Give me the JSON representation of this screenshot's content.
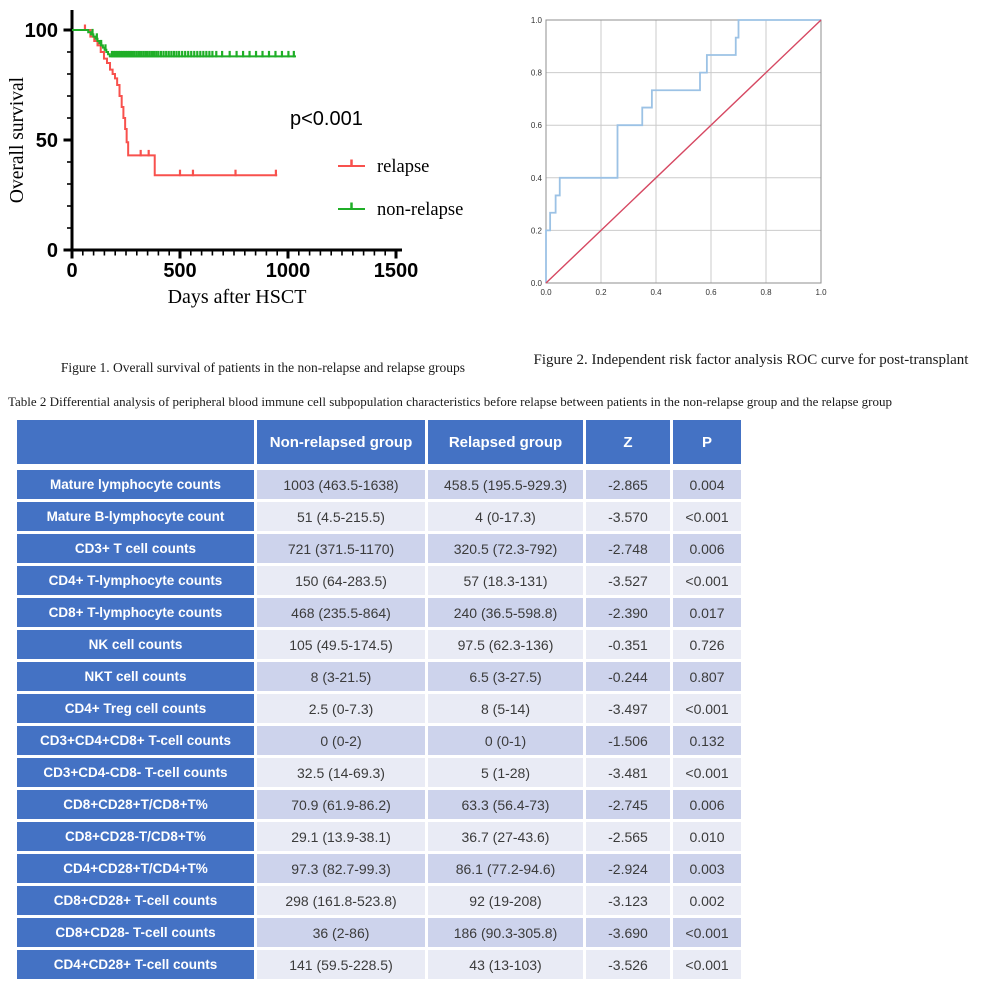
{
  "page": {
    "background": "#ffffff"
  },
  "figure1": {
    "caption": "Figure 1. Overall survival of patients in the non-relapse and relapse groups",
    "p_annotation": "p<0.001",
    "xlabel": "Days after HSCT",
    "ylabel": "Overall survival",
    "legend": [
      {
        "label": "relapse",
        "color": "#f8514d"
      },
      {
        "label": "non-relapse",
        "color": "#1fae27"
      }
    ]
  },
  "figure2": {
    "caption": "Figure 2. Independent risk factor analysis ROC curve for post-transplant"
  },
  "table2": {
    "caption": "Table 2 Differential analysis of peripheral blood immune cell subpopulation characteristics before relapse between patients in the non-relapse group and the relapse group",
    "headers": [
      "",
      "Non-relapsed group",
      "Relapsed group",
      "Z",
      "P"
    ],
    "header_color": "#4472c4",
    "row_band_dark": "#cdd3ec",
    "row_band_light": "#e9ebf5",
    "rows": [
      {
        "label": "Mature lymphocyte counts",
        "non_relapsed": "1003 (463.5-1638)",
        "relapsed": "458.5 (195.5-929.3)",
        "z": "-2.865",
        "p": "0.004"
      },
      {
        "label": "Mature B-lymphocyte count",
        "non_relapsed": "51 (4.5-215.5)",
        "relapsed": "4 (0-17.3)",
        "z": "-3.570",
        "p": "<0.001"
      },
      {
        "label": "CD3+ T cell counts",
        "non_relapsed": "721 (371.5-1170)",
        "relapsed": "320.5 (72.3-792)",
        "z": "-2.748",
        "p": "0.006"
      },
      {
        "label": "CD4+ T-lymphocyte counts",
        "non_relapsed": "150 (64-283.5)",
        "relapsed": "57 (18.3-131)",
        "z": "-3.527",
        "p": "<0.001"
      },
      {
        "label": "CD8+ T-lymphocyte counts",
        "non_relapsed": "468 (235.5-864)",
        "relapsed": "240 (36.5-598.8)",
        "z": "-2.390",
        "p": "0.017"
      },
      {
        "label": "NK cell counts",
        "non_relapsed": "105 (49.5-174.5)",
        "relapsed": "97.5 (62.3-136)",
        "z": "-0.351",
        "p": "0.726"
      },
      {
        "label": "NKT cell counts",
        "non_relapsed": "8 (3-21.5)",
        "relapsed": "6.5 (3-27.5)",
        "z": "-0.244",
        "p": "0.807"
      },
      {
        "label": "CD4+ Treg cell counts",
        "non_relapsed": "2.5 (0-7.3)",
        "relapsed": "8 (5-14)",
        "z": "-3.497",
        "p": "<0.001"
      },
      {
        "label": "CD3+CD4+CD8+ T-cell counts",
        "non_relapsed": "0 (0-2)",
        "relapsed": "0 (0-1)",
        "z": "-1.506",
        "p": "0.132"
      },
      {
        "label": "CD3+CD4-CD8- T-cell counts",
        "non_relapsed": "32.5 (14-69.3)",
        "relapsed": "5 (1-28)",
        "z": "-3.481",
        "p": "<0.001"
      },
      {
        "label": "CD8+CD28+T/CD8+T%",
        "non_relapsed": "70.9 (61.9-86.2)",
        "relapsed": "63.3 (56.4-73)",
        "z": "-2.745",
        "p": "0.006"
      },
      {
        "label": "CD8+CD28-T/CD8+T%",
        "non_relapsed": "29.1 (13.9-38.1)",
        "relapsed": "36.7 (27-43.6)",
        "z": "-2.565",
        "p": "0.010"
      },
      {
        "label": "CD4+CD28+T/CD4+T%",
        "non_relapsed": "97.3 (82.7-99.3)",
        "relapsed": "86.1 (77.2-94.6)",
        "z": "-2.924",
        "p": "0.003"
      },
      {
        "label": "CD8+CD28+ T-cell counts",
        "non_relapsed": "298 (161.8-523.8)",
        "relapsed": "92 (19-208)",
        "z": "-3.123",
        "p": "0.002"
      },
      {
        "label": "CD8+CD28- T-cell counts",
        "non_relapsed": "36 (2-86)",
        "relapsed": "186 (90.3-305.8)",
        "z": "-3.690",
        "p": "<0.001"
      },
      {
        "label": "CD4+CD28+ T-cell counts",
        "non_relapsed": "141 (59.5-228.5)",
        "relapsed": "43 (13-103)",
        "z": "-3.526",
        "p": "<0.001"
      }
    ]
  },
  "chart_data": [
    {
      "type": "line",
      "name": "kaplan-meier-overall-survival",
      "title": "",
      "xlabel": "Days after HSCT",
      "ylabel": "Overall survival",
      "xlim": [
        0,
        1500
      ],
      "ylim": [
        0,
        100
      ],
      "x_ticks": [
        0,
        500,
        1000,
        1500
      ],
      "y_ticks": [
        0,
        50,
        100
      ],
      "x_minor_step": 50,
      "y_minor_step": 10,
      "annotation": "p<0.001",
      "grid": false,
      "legend_position": "right-middle",
      "series": [
        {
          "name": "relapse",
          "color": "#f8514d",
          "steps": [
            [
              0,
              100
            ],
            [
              85,
              100
            ],
            [
              85,
              97
            ],
            [
              103,
              97
            ],
            [
              103,
              95
            ],
            [
              118,
              95
            ],
            [
              118,
              93
            ],
            [
              133,
              93
            ],
            [
              133,
              90
            ],
            [
              148,
              90
            ],
            [
              148,
              87
            ],
            [
              162,
              87
            ],
            [
              162,
              85
            ],
            [
              176,
              85
            ],
            [
              176,
              82
            ],
            [
              188,
              82
            ],
            [
              188,
              80
            ],
            [
              199,
              80
            ],
            [
              199,
              78
            ],
            [
              209,
              78
            ],
            [
              209,
              75
            ],
            [
              220,
              75
            ],
            [
              220,
              70
            ],
            [
              230,
              70
            ],
            [
              230,
              65
            ],
            [
              238,
              65
            ],
            [
              238,
              60
            ],
            [
              246,
              60
            ],
            [
              246,
              55
            ],
            [
              253,
              55
            ],
            [
              253,
              49
            ],
            [
              260,
              49
            ],
            [
              260,
              43
            ],
            [
              383,
              43
            ],
            [
              383,
              34
            ],
            [
              950,
              34
            ]
          ],
          "censor_days": [
            60,
            318,
            355,
            500,
            560,
            757,
            944
          ]
        },
        {
          "name": "non-relapse",
          "color": "#1fae27",
          "steps": [
            [
              0,
              100
            ],
            [
              75,
              100
            ],
            [
              75,
              99
            ],
            [
              88,
              99
            ],
            [
              88,
              98
            ],
            [
              99,
              98
            ],
            [
              99,
              97
            ],
            [
              109,
              97
            ],
            [
              109,
              96
            ],
            [
              118,
              96
            ],
            [
              118,
              95
            ],
            [
              127,
              95
            ],
            [
              127,
              94
            ],
            [
              135,
              94
            ],
            [
              135,
              93
            ],
            [
              143,
              93
            ],
            [
              143,
              92
            ],
            [
              151,
              92
            ],
            [
              151,
              91
            ],
            [
              159,
              91
            ],
            [
              159,
              90
            ],
            [
              167,
              90
            ],
            [
              167,
              89
            ],
            [
              175,
              89
            ],
            [
              175,
              88
            ],
            [
              1037,
              88
            ]
          ],
          "censor_days": [
            95,
            115,
            135,
            155,
            185,
            193,
            201,
            209,
            217,
            225,
            233,
            241,
            249,
            257,
            265,
            273,
            281,
            290,
            300,
            310,
            320,
            330,
            340,
            350,
            360,
            370,
            380,
            390,
            400,
            412,
            424,
            436,
            448,
            460,
            472,
            484,
            496,
            510,
            524,
            538,
            552,
            566,
            580,
            594,
            608,
            622,
            636,
            650,
            668,
            695,
            730,
            762,
            792,
            822,
            852,
            882,
            912,
            942,
            972,
            1002,
            1027
          ]
        }
      ]
    },
    {
      "type": "line",
      "name": "roc-curve",
      "title": "",
      "xlabel": "",
      "ylabel": "",
      "xlim": [
        0,
        1
      ],
      "ylim": [
        0,
        1
      ],
      "x_ticks": [
        "0.0",
        "0.2",
        "0.4",
        "0.6",
        "0.8",
        "1.0"
      ],
      "y_ticks": [
        "0.0",
        "0.2",
        "0.4",
        "0.6",
        "0.8",
        "1.0"
      ],
      "grid": true,
      "series": [
        {
          "name": "roc",
          "color": "#9cc2e5",
          "points": [
            [
              0,
              0
            ],
            [
              0,
              0.2
            ],
            [
              0.015,
              0.2
            ],
            [
              0.015,
              0.267
            ],
            [
              0.035,
              0.267
            ],
            [
              0.035,
              0.333
            ],
            [
              0.05,
              0.333
            ],
            [
              0.05,
              0.4
            ],
            [
              0.26,
              0.4
            ],
            [
              0.26,
              0.6
            ],
            [
              0.35,
              0.6
            ],
            [
              0.35,
              0.667
            ],
            [
              0.385,
              0.667
            ],
            [
              0.385,
              0.733
            ],
            [
              0.56,
              0.733
            ],
            [
              0.56,
              0.8
            ],
            [
              0.585,
              0.8
            ],
            [
              0.585,
              0.867
            ],
            [
              0.69,
              0.867
            ],
            [
              0.69,
              0.933
            ],
            [
              0.7,
              0.933
            ],
            [
              0.7,
              1
            ],
            [
              1,
              1
            ]
          ]
        },
        {
          "name": "reference-diagonal",
          "color": "#d64862",
          "points": [
            [
              0,
              0
            ],
            [
              1,
              1
            ]
          ]
        }
      ]
    }
  ]
}
